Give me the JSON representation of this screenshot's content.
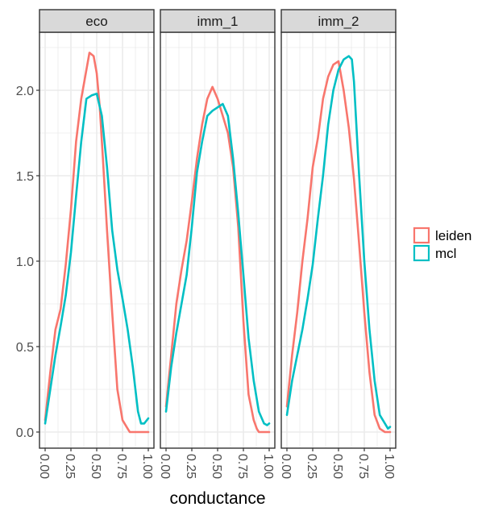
{
  "chart_data": {
    "type": "line",
    "chart_kind": "faceted density",
    "xlabel": "conductance",
    "ylabel": "",
    "xlim": [
      0,
      1
    ],
    "ylim": [
      0,
      2.25
    ],
    "x_ticks": [
      "0.00",
      "0.25",
      "0.50",
      "0.75",
      "1.00"
    ],
    "y_ticks": [
      "0.0",
      "0.5",
      "1.0",
      "1.5",
      "2.0"
    ],
    "grid": true,
    "legend": {
      "placement": "right",
      "items": [
        "leiden",
        "mcl"
      ]
    },
    "colors": {
      "leiden": "#F8766D",
      "mcl": "#00BFC4",
      "strip": "#D9D9D9",
      "grid": "#EBEBEB"
    },
    "facets": [
      {
        "label": "eco",
        "series": [
          {
            "name": "leiden",
            "x": [
              0.0,
              0.05,
              0.1,
              0.15,
              0.2,
              0.25,
              0.3,
              0.35,
              0.4,
              0.43,
              0.47,
              0.5,
              0.53,
              0.56,
              0.6,
              0.65,
              0.7,
              0.75,
              0.8,
              0.82,
              0.85,
              0.9,
              0.95,
              1.0
            ],
            "y": [
              0.07,
              0.35,
              0.6,
              0.72,
              0.98,
              1.3,
              1.7,
              1.95,
              2.12,
              2.22,
              2.2,
              2.1,
              1.9,
              1.6,
              1.18,
              0.7,
              0.25,
              0.07,
              0.02,
              0.0,
              0.0,
              0.0,
              0.0,
              0.0
            ]
          },
          {
            "name": "mcl",
            "x": [
              0.0,
              0.05,
              0.1,
              0.15,
              0.2,
              0.25,
              0.3,
              0.35,
              0.4,
              0.45,
              0.5,
              0.55,
              0.6,
              0.65,
              0.7,
              0.75,
              0.8,
              0.85,
              0.9,
              0.93,
              0.96,
              1.0
            ],
            "y": [
              0.05,
              0.25,
              0.45,
              0.62,
              0.8,
              1.05,
              1.38,
              1.7,
              1.95,
              1.97,
              1.98,
              1.85,
              1.55,
              1.18,
              0.95,
              0.78,
              0.6,
              0.38,
              0.12,
              0.05,
              0.05,
              0.08
            ]
          }
        ]
      },
      {
        "label": "imm_1",
        "series": [
          {
            "name": "leiden",
            "x": [
              0.0,
              0.05,
              0.1,
              0.15,
              0.2,
              0.25,
              0.3,
              0.35,
              0.4,
              0.45,
              0.5,
              0.55,
              0.6,
              0.65,
              0.7,
              0.75,
              0.8,
              0.85,
              0.88,
              0.9,
              0.95,
              1.0
            ],
            "y": [
              0.15,
              0.45,
              0.75,
              0.95,
              1.12,
              1.35,
              1.6,
              1.8,
              1.95,
              2.02,
              1.95,
              1.85,
              1.75,
              1.55,
              1.2,
              0.65,
              0.22,
              0.07,
              0.02,
              0.0,
              0.0,
              0.0
            ]
          },
          {
            "name": "mcl",
            "x": [
              0.0,
              0.05,
              0.1,
              0.15,
              0.2,
              0.25,
              0.3,
              0.35,
              0.4,
              0.45,
              0.5,
              0.55,
              0.6,
              0.65,
              0.7,
              0.75,
              0.8,
              0.85,
              0.9,
              0.95,
              0.98,
              1.0
            ],
            "y": [
              0.12,
              0.38,
              0.58,
              0.75,
              0.92,
              1.2,
              1.52,
              1.7,
              1.85,
              1.88,
              1.9,
              1.92,
              1.85,
              1.6,
              1.28,
              0.92,
              0.55,
              0.3,
              0.12,
              0.05,
              0.04,
              0.05
            ]
          }
        ]
      },
      {
        "label": "imm_2",
        "series": [
          {
            "name": "leiden",
            "x": [
              0.0,
              0.05,
              0.1,
              0.15,
              0.2,
              0.25,
              0.3,
              0.35,
              0.4,
              0.45,
              0.5,
              0.55,
              0.6,
              0.65,
              0.7,
              0.75,
              0.8,
              0.85,
              0.9,
              0.95,
              1.0
            ],
            "y": [
              0.15,
              0.45,
              0.7,
              1.0,
              1.25,
              1.55,
              1.72,
              1.95,
              2.08,
              2.15,
              2.17,
              2.0,
              1.78,
              1.48,
              1.1,
              0.7,
              0.35,
              0.1,
              0.02,
              0.0,
              0.0
            ]
          },
          {
            "name": "mcl",
            "x": [
              0.0,
              0.05,
              0.1,
              0.15,
              0.2,
              0.25,
              0.3,
              0.35,
              0.4,
              0.45,
              0.5,
              0.55,
              0.6,
              0.63,
              0.65,
              0.7,
              0.75,
              0.8,
              0.85,
              0.9,
              0.95,
              0.98,
              1.0
            ],
            "y": [
              0.1,
              0.3,
              0.45,
              0.6,
              0.78,
              0.98,
              1.25,
              1.5,
              1.8,
              2.0,
              2.12,
              2.18,
              2.2,
              2.18,
              2.05,
              1.5,
              1.0,
              0.6,
              0.3,
              0.1,
              0.05,
              0.02,
              0.03
            ]
          }
        ]
      }
    ]
  }
}
